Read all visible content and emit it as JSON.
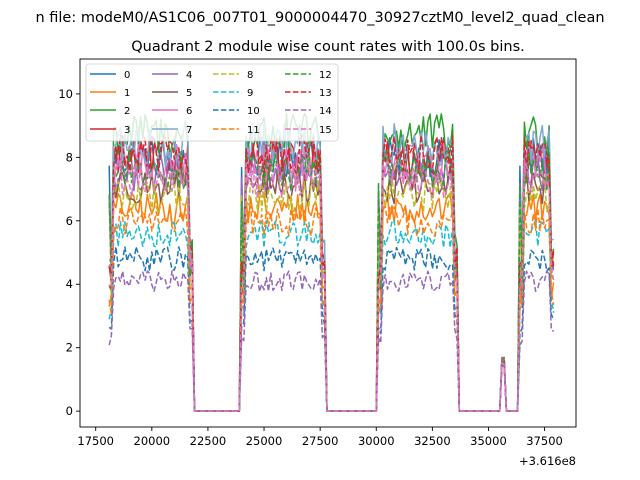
{
  "chart_data": {
    "type": "line",
    "suptitle": "n file: modeM0/AS1C06_007T01_9000004470_30927cztM0_level2_quad_clean",
    "title": "Quadrant 2 module wise count rates with 100.0s bins.",
    "xlabel": "",
    "ylabel": "",
    "x_offset_label": "+3.616e8",
    "xlim": [
      16800,
      38900
    ],
    "ylim": [
      -0.5,
      11.1
    ],
    "xticks": [
      17500,
      20000,
      22500,
      25000,
      27500,
      30000,
      32500,
      35000,
      37500
    ],
    "yticks": [
      0,
      2,
      4,
      6,
      8,
      10
    ],
    "grid": false,
    "legend_position": "upper-left",
    "legend_columns": 4,
    "segments": [
      {
        "start": 18100,
        "end": 21800
      },
      {
        "start": 24000,
        "end": 27700
      },
      {
        "start": 30100,
        "end": 33600
      },
      {
        "start": 35600,
        "end": 35700
      },
      {
        "start": 36400,
        "end": 37900
      }
    ],
    "series": [
      {
        "name": "0",
        "color": "#1f77b4",
        "dash": "solid",
        "level": 8.0
      },
      {
        "name": "1",
        "color": "#ff7f0e",
        "dash": "solid",
        "level": 6.4
      },
      {
        "name": "2",
        "color": "#2ca02c",
        "dash": "solid",
        "level": 8.7
      },
      {
        "name": "3",
        "color": "#d62728",
        "dash": "solid",
        "level": 7.9
      },
      {
        "name": "4",
        "color": "#9467bd",
        "dash": "solid",
        "level": 7.5
      },
      {
        "name": "5",
        "color": "#8c564b",
        "dash": "solid",
        "level": 7.1
      },
      {
        "name": "6",
        "color": "#e377c2",
        "dash": "solid",
        "level": 7.8
      },
      {
        "name": "7",
        "color": "#7fa9cf",
        "dash": "solid",
        "level": 8.4
      },
      {
        "name": "8",
        "color": "#bcbd22",
        "dash": "dashed",
        "level": 6.8
      },
      {
        "name": "9",
        "color": "#17becf",
        "dash": "dashed",
        "level": 5.6
      },
      {
        "name": "10",
        "color": "#1f77b4",
        "dash": "dashed",
        "level": 4.8
      },
      {
        "name": "11",
        "color": "#ff7f0e",
        "dash": "dashed",
        "level": 6.0
      },
      {
        "name": "12",
        "color": "#2ca02c",
        "dash": "dashed",
        "level": 7.6
      },
      {
        "name": "13",
        "color": "#d62728",
        "dash": "dashed",
        "level": 8.1
      },
      {
        "name": "14",
        "color": "#9467bd",
        "dash": "dashed",
        "level": 4.1
      },
      {
        "name": "15",
        "color": "#e377c2",
        "dash": "dashed",
        "level": 7.3
      }
    ]
  }
}
